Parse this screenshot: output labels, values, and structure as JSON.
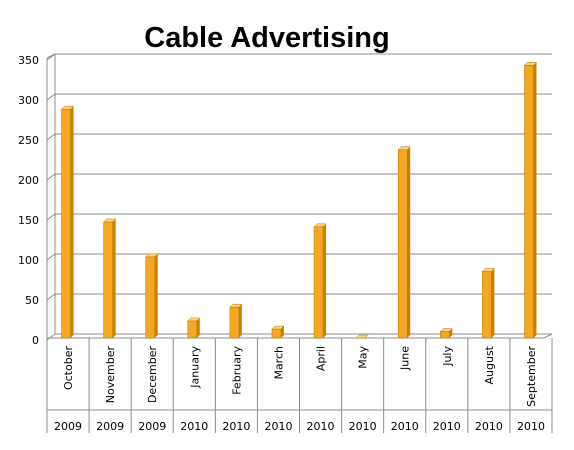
{
  "chart_data": {
    "type": "bar",
    "title": "Cable Advertising",
    "categories": [
      "October",
      "November",
      "December",
      "January",
      "February",
      "March",
      "April",
      "May",
      "June",
      "July",
      "August",
      "September"
    ],
    "years": [
      "2009",
      "2009",
      "2009",
      "2010",
      "2010",
      "2010",
      "2010",
      "2010",
      "2010",
      "2010",
      "2010",
      "2010"
    ],
    "values": [
      282,
      143,
      100,
      21,
      38,
      11,
      137,
      0,
      232,
      8,
      82,
      336
    ],
    "ylim": [
      0,
      350
    ],
    "yticks": [
      0,
      50,
      100,
      150,
      200,
      250,
      300,
      350
    ],
    "xlabel": "",
    "ylabel": "",
    "grid": true,
    "legend": "none",
    "bar_color": "#F5A623",
    "bar_side_color": "#C98200",
    "bar_top_color": "#FFD27A"
  }
}
